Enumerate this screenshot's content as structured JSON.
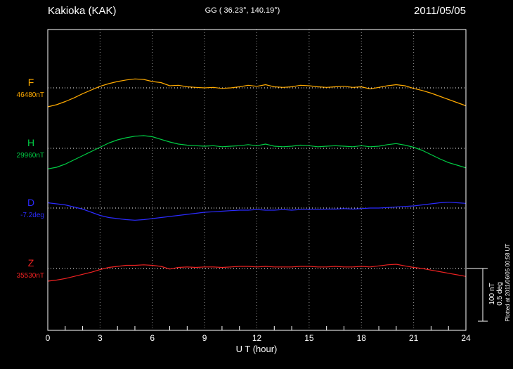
{
  "chart_data": {
    "type": "line",
    "title": "Kakioka (KAK)",
    "subtitle": "GG ( 36.23°, 140.19°)",
    "date": "2011/05/05",
    "xlabel": "U T (hour)",
    "x_range": [
      0,
      24
    ],
    "x_tick_hours": [
      0,
      3,
      6,
      9,
      12,
      15,
      18,
      21,
      24
    ],
    "grid": "dotted-vertical-every-3h, dotted-horizontal-baseline-per-series",
    "legend_position": "left-of-each-trace",
    "scale_bar": {
      "label_nT": "100 nT",
      "label_deg": "0.5 deg",
      "nT_per_div": 100,
      "deg_per_div": 0.5
    },
    "plotted_at": "Plotted at 2011/06/05 00:58 UT",
    "x_hours": [
      0,
      0.5,
      1,
      1.5,
      2,
      2.5,
      3,
      3.5,
      4,
      4.5,
      5,
      5.5,
      6,
      6.5,
      7,
      7.5,
      8,
      8.5,
      9,
      9.5,
      10,
      10.5,
      11,
      11.5,
      12,
      12.5,
      13,
      13.5,
      14,
      14.5,
      15,
      15.5,
      16,
      16.5,
      17,
      17.5,
      18,
      18.5,
      19,
      19.5,
      20,
      20.5,
      21,
      21.5,
      22,
      22.5,
      23,
      23.5,
      24
    ],
    "series": [
      {
        "name": "F",
        "baseline_label": "46480nT",
        "baseline": 46480,
        "unit": "nT",
        "color": "#ffaa00",
        "values": [
          46444,
          46448,
          46454,
          46461,
          46469,
          46476,
          46483,
          46488,
          46492,
          46495,
          46497,
          46496,
          46492,
          46490,
          46484,
          46485,
          46482,
          46481,
          46480,
          46481,
          46479,
          46480,
          46482,
          46485,
          46483,
          46486,
          46482,
          46481,
          46482,
          46485,
          46484,
          46482,
          46481,
          46482,
          46483,
          46481,
          46482,
          46478,
          46481,
          46484,
          46486,
          46484,
          46479,
          46475,
          46470,
          46464,
          46458,
          46452,
          46446
        ]
      },
      {
        "name": "H",
        "baseline_label": "29960nT",
        "baseline": 29960,
        "unit": "nT",
        "color": "#00cc44",
        "values": [
          29921,
          29924,
          29930,
          29938,
          29946,
          29954,
          29962,
          29970,
          29976,
          29980,
          29983,
          29984,
          29982,
          29977,
          29972,
          29968,
          29966,
          29965,
          29964,
          29965,
          29963,
          29964,
          29965,
          29967,
          29965,
          29968,
          29964,
          29963,
          29964,
          29966,
          29965,
          29963,
          29964,
          29965,
          29964,
          29963,
          29965,
          29963,
          29964,
          29967,
          29969,
          29966,
          29962,
          29956,
          29948,
          29940,
          29933,
          29928,
          29923
        ]
      },
      {
        "name": "D",
        "baseline_label": "-7.2deg",
        "baseline": -7.2,
        "unit": "deg",
        "color": "#2b2bff",
        "values": [
          -7.15,
          -7.16,
          -7.17,
          -7.19,
          -7.21,
          -7.24,
          -7.27,
          -7.29,
          -7.3,
          -7.31,
          -7.315,
          -7.31,
          -7.3,
          -7.29,
          -7.28,
          -7.27,
          -7.26,
          -7.25,
          -7.24,
          -7.235,
          -7.23,
          -7.225,
          -7.22,
          -7.22,
          -7.215,
          -7.22,
          -7.22,
          -7.215,
          -7.22,
          -7.215,
          -7.21,
          -7.215,
          -7.21,
          -7.21,
          -7.205,
          -7.21,
          -7.205,
          -7.2,
          -7.2,
          -7.195,
          -7.19,
          -7.185,
          -7.18,
          -7.17,
          -7.16,
          -7.15,
          -7.145,
          -7.15,
          -7.155
        ]
      },
      {
        "name": "Z",
        "baseline_label": "35530nT",
        "baseline": 35530,
        "unit": "nT",
        "color": "#ee2222",
        "values": [
          35506,
          35508,
          35511,
          35515,
          35519,
          35523,
          35528,
          35532,
          35534,
          35536,
          35536,
          35537,
          35536,
          35534,
          35529,
          35532,
          35533,
          35532,
          35533,
          35533,
          35532,
          35533,
          35534,
          35534,
          35533,
          35534,
          35533,
          35533,
          35533,
          35534,
          35534,
          35533,
          35533,
          35534,
          35533,
          35533,
          35534,
          35533,
          35535,
          35537,
          35538,
          35535,
          35532,
          35530,
          35527,
          35524,
          35521,
          35518,
          35515
        ]
      }
    ]
  }
}
